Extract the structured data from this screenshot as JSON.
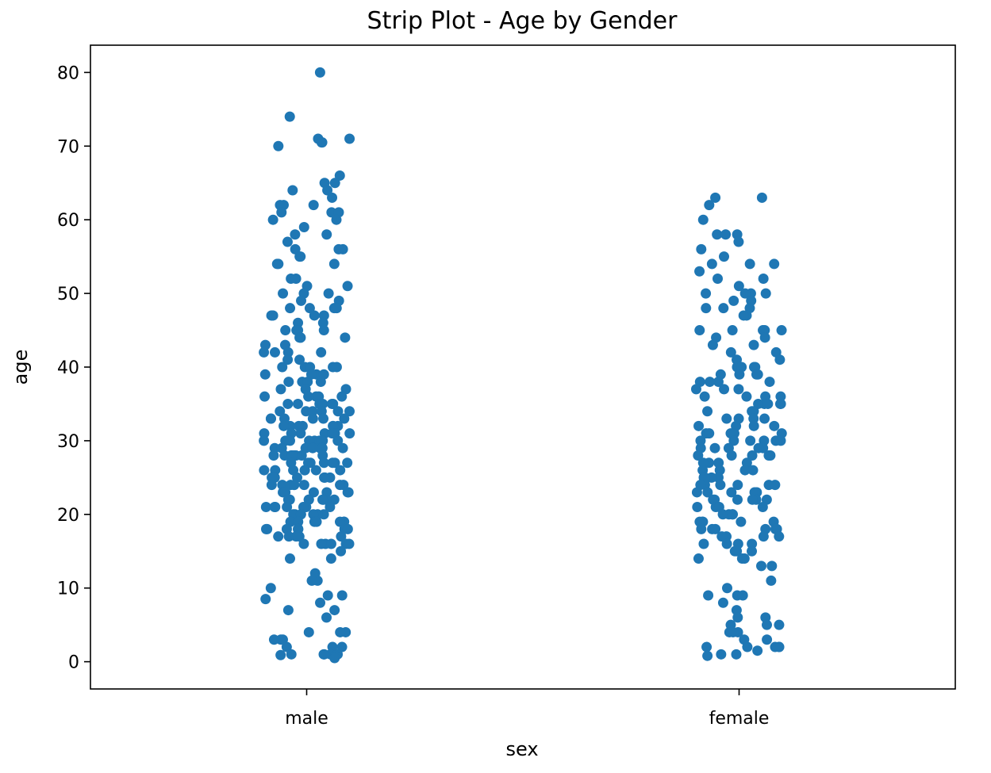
{
  "chart_data": {
    "type": "scatter",
    "subtype": "strip",
    "title": "Strip Plot - Age by Gender",
    "xlabel": "sex",
    "ylabel": "age",
    "categories": [
      "male",
      "female"
    ],
    "ylim": [
      -3.7,
      83.7
    ],
    "yticks": [
      0,
      10,
      20,
      30,
      40,
      50,
      60,
      70,
      80
    ],
    "grid": false,
    "legend": "none",
    "jitter": 0.1,
    "point_color": "#1f77b4",
    "series": [
      {
        "category": "male",
        "values": [
          80,
          74,
          71,
          71,
          70.5,
          70.5,
          70,
          66,
          65,
          65,
          64,
          64,
          63,
          62,
          62,
          62,
          61,
          61,
          61,
          60,
          60,
          59,
          58,
          58,
          57,
          56,
          56,
          56,
          55,
          55,
          54,
          54,
          54,
          52,
          52,
          51,
          51,
          50,
          50,
          50,
          49,
          49,
          48,
          48,
          48,
          48,
          47,
          47,
          47,
          47,
          46,
          46,
          45,
          45,
          45,
          45,
          44,
          44,
          44,
          43,
          43,
          42,
          42,
          42,
          42,
          41,
          41,
          40,
          40,
          40,
          40,
          40,
          39,
          39,
          39,
          39,
          38,
          38,
          38,
          38,
          37,
          37,
          37,
          36,
          36,
          36,
          36,
          36,
          35,
          35,
          35,
          35,
          35,
          35,
          34,
          34,
          34,
          34,
          34,
          34,
          33,
          33,
          33,
          33,
          33,
          33,
          32,
          32,
          32,
          32,
          32,
          32,
          32,
          31,
          31,
          31,
          31,
          31,
          31,
          31,
          30,
          30,
          30,
          30,
          30,
          30,
          30,
          30,
          30,
          29,
          29,
          29,
          29,
          29,
          29,
          29,
          29,
          28,
          28,
          28,
          28,
          28,
          28,
          28,
          28,
          27,
          27,
          27,
          27,
          27,
          27,
          27,
          26,
          26,
          26,
          26,
          26,
          26,
          26,
          25,
          25,
          25,
          25,
          25,
          25,
          25,
          25,
          24,
          24,
          24,
          24,
          24,
          24,
          24,
          24,
          23,
          23,
          23,
          23,
          23,
          23,
          23,
          22,
          22,
          22,
          22,
          22,
          22,
          22,
          22,
          21,
          21,
          21,
          21,
          21,
          21,
          21,
          20,
          20,
          20,
          20,
          20,
          20,
          20,
          19,
          19,
          19,
          19,
          19,
          19,
          19,
          18,
          18,
          18,
          18,
          18,
          18,
          18,
          17,
          17,
          17,
          17,
          17,
          16,
          16,
          16,
          16,
          16,
          16,
          15,
          14,
          14,
          12,
          11,
          11,
          10,
          9,
          9,
          8.5,
          8,
          7,
          7,
          6,
          4,
          4,
          4,
          3,
          3,
          3,
          2,
          2,
          2,
          1,
          1,
          1,
          1,
          1,
          0.9,
          0.8,
          0.5
        ]
      },
      {
        "category": "female",
        "values": [
          63,
          63,
          62,
          60,
          58,
          58,
          58,
          57,
          56,
          55,
          54,
          54,
          54,
          53,
          52,
          52,
          51,
          50,
          50,
          50,
          50,
          49,
          49,
          48,
          48,
          48,
          47,
          47,
          45,
          45,
          45,
          45,
          45,
          44,
          44,
          43,
          43,
          42,
          42,
          41,
          41,
          40,
          40,
          40,
          40,
          39,
          39,
          39,
          39,
          38,
          38,
          38,
          38,
          37,
          37,
          37,
          36,
          36,
          36,
          36,
          35,
          35,
          35,
          35,
          35,
          34,
          34,
          34,
          33,
          33,
          33,
          33,
          32,
          32,
          32,
          32,
          31,
          31,
          31,
          31,
          31,
          30,
          30,
          30,
          30,
          30,
          30,
          29,
          29,
          29,
          29,
          29,
          28,
          28,
          28,
          28,
          28,
          27,
          27,
          27,
          27,
          26,
          26,
          26,
          26,
          25,
          25,
          25,
          25,
          24,
          24,
          24,
          24,
          24,
          24,
          23,
          23,
          23,
          23,
          23,
          22,
          22,
          22,
          22,
          22,
          22,
          21,
          21,
          21,
          21,
          20,
          20,
          20,
          20,
          19,
          19,
          19,
          19,
          19,
          18,
          18,
          18,
          18,
          18,
          18,
          17,
          17,
          17,
          17,
          16,
          16,
          16,
          16,
          15,
          15,
          15,
          14,
          14,
          14,
          13,
          13,
          11,
          10,
          9,
          9,
          9,
          8,
          7,
          6,
          6,
          5,
          5,
          5,
          4,
          4,
          4,
          3,
          3,
          2,
          2,
          2,
          2,
          2,
          1.5,
          1,
          1,
          0.8
        ]
      }
    ]
  }
}
